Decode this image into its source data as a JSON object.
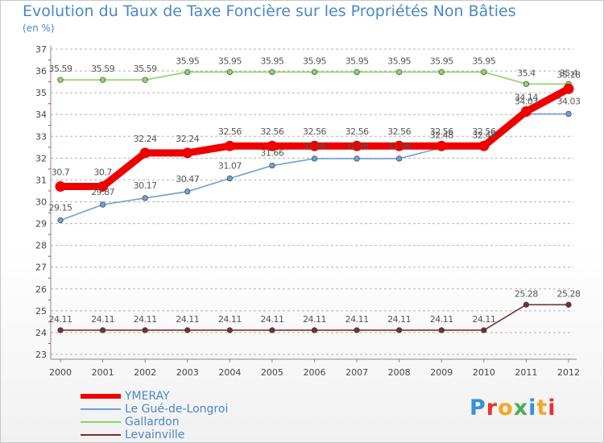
{
  "header": {
    "title": "Evolution du Taux de Taxe Foncière sur les Propriétés Non Bâties",
    "unit": "(en %)"
  },
  "chart_data": {
    "type": "line",
    "title": "Evolution du Taux de Taxe Foncière sur les Propriétés Non Bâties",
    "subtitle": "(en %)",
    "x": [
      "2000",
      "2001",
      "2002",
      "2003",
      "2004",
      "2005",
      "2006",
      "2007",
      "2008",
      "2009",
      "2010",
      "2011",
      "2012"
    ],
    "ylim": [
      23,
      37
    ],
    "yticks": [
      23,
      24,
      25,
      26,
      27,
      28,
      29,
      30,
      31,
      32,
      33,
      34,
      35,
      36,
      37
    ],
    "grid": "horizontal-dashed",
    "legend_position": "bottom-left",
    "series": [
      {
        "name": "YMERAY",
        "color": "#ee0000",
        "values": [
          30.7,
          30.7,
          32.24,
          32.24,
          32.56,
          32.56,
          32.56,
          32.56,
          32.56,
          32.56,
          32.56,
          34.14,
          35.18
        ],
        "labels": [
          "30.7",
          "30.7",
          "32.24",
          "32.24",
          "32.56",
          "32.56",
          "32.56",
          "32.56",
          "32.56",
          "32.56",
          "32.56",
          "34.14",
          "35.18"
        ]
      },
      {
        "name": "Le Gué-de-Longroi",
        "color": "#6fa0cf",
        "values": [
          29.15,
          29.87,
          30.17,
          30.47,
          31.07,
          31.66,
          31.98,
          31.98,
          31.98,
          32.48,
          32.48,
          34.03,
          34.03
        ],
        "labels": [
          "29.15",
          "29.87",
          "30.17",
          "30.47",
          "31.07",
          "31.66",
          "31.98",
          "31.98",
          "31.98",
          "32.48",
          "32.48",
          "34.03",
          "34.03"
        ]
      },
      {
        "name": "Gallardon",
        "color": "#8fd36a",
        "values": [
          35.59,
          35.59,
          35.59,
          35.95,
          35.95,
          35.95,
          35.95,
          35.95,
          35.95,
          35.95,
          35.95,
          35.4,
          35.4
        ],
        "labels": [
          "35.59",
          "35.59",
          "35.59",
          "35.95",
          "35.95",
          "35.95",
          "35.95",
          "35.95",
          "35.95",
          "35.95",
          "35.95",
          "35.4",
          "35.4"
        ]
      },
      {
        "name": "Levainville",
        "color": "#7a2f2f",
        "values": [
          24.11,
          24.11,
          24.11,
          24.11,
          24.11,
          24.11,
          24.11,
          24.11,
          24.11,
          24.11,
          24.11,
          25.28,
          25.28
        ],
        "labels": [
          "24.11",
          "24.11",
          "24.11",
          "24.11",
          "24.11",
          "24.11",
          "24.11",
          "24.11",
          "24.11",
          "24.11",
          "24.11",
          "25.28",
          "25.28"
        ]
      }
    ]
  },
  "legend": {
    "items": [
      {
        "label": "YMERAY",
        "color": "#ee0000"
      },
      {
        "label": "Le Gué-de-Longroi",
        "color": "#6fa0cf"
      },
      {
        "label": "Gallardon",
        "color": "#8fd36a"
      },
      {
        "label": "Levainville",
        "color": "#7a2f2f"
      }
    ]
  },
  "logo": {
    "text": "Proxiti",
    "colors": [
      "#3a8fd8",
      "#e8322c",
      "#f5a623",
      "#4caf50",
      "#3a8fd8",
      "#f5a623",
      "#e8322c"
    ]
  }
}
